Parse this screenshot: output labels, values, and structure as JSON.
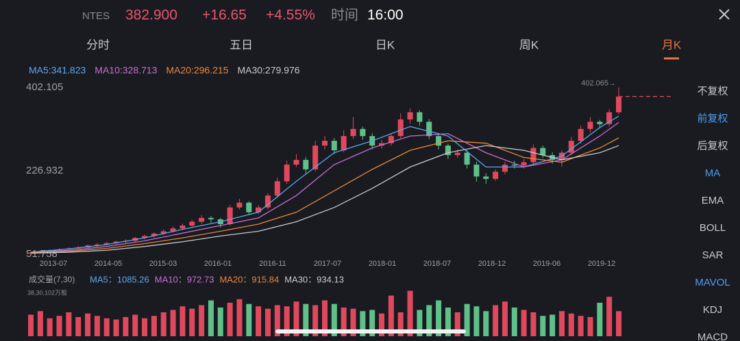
{
  "header": {
    "symbol": "NTES",
    "price": "382.900",
    "change": "+16.65",
    "change_pct": "+4.55%",
    "time_label": "时间",
    "time": "16:00"
  },
  "tabs": [
    "分时",
    "五日",
    "日K",
    "周K",
    "月K"
  ],
  "active_tab": 4,
  "side_menu": [
    "不复权",
    "前复权",
    "后复权",
    "MA",
    "EMA",
    "BOLL",
    "SAR",
    "MAVOL",
    "KDJ",
    "MACD"
  ],
  "side_menu_active": [
    1,
    3,
    7
  ],
  "chart_data": {
    "type": "candlestick",
    "ma_labels": [
      {
        "text": "MA5:341.823",
        "color": "#5aa7f0"
      },
      {
        "text": "MA10:328.713",
        "color": "#c86dd7"
      },
      {
        "text": "MA20:296.215",
        "color": "#e8873a"
      },
      {
        "text": "MA30:279.976",
        "color": "#c8c8cc"
      }
    ],
    "ylim": [
      51.758,
      402.105
    ],
    "yticks": [
      402.105,
      226.932,
      51.758
    ],
    "x_labels": [
      "2013-07",
      "2014-05",
      "2015-03",
      "2016-01",
      "2016-11",
      "2017-07",
      "2018-01",
      "2018-07",
      "2018-12",
      "2019-06",
      "2019-12"
    ],
    "up_color": "#e0495d",
    "down_color": "#5fc08a",
    "max_label": "402.065→",
    "ohlc": [
      [
        53,
        57,
        50,
        55
      ],
      [
        55,
        60,
        53,
        58
      ],
      [
        58,
        62,
        56,
        60
      ],
      [
        60,
        64,
        57,
        62
      ],
      [
        62,
        66,
        60,
        64
      ],
      [
        64,
        69,
        62,
        66
      ],
      [
        66,
        72,
        64,
        70
      ],
      [
        70,
        75,
        67,
        72
      ],
      [
        72,
        78,
        70,
        75
      ],
      [
        75,
        80,
        73,
        78
      ],
      [
        78,
        83,
        75,
        80
      ],
      [
        80,
        88,
        78,
        86
      ],
      [
        86,
        93,
        83,
        90
      ],
      [
        90,
        98,
        87,
        95
      ],
      [
        95,
        104,
        92,
        100
      ],
      [
        100,
        110,
        97,
        106
      ],
      [
        106,
        116,
        102,
        112
      ],
      [
        112,
        124,
        108,
        120
      ],
      [
        120,
        134,
        116,
        128
      ],
      [
        128,
        132,
        118,
        125
      ],
      [
        125,
        128,
        108,
        115
      ],
      [
        115,
        155,
        112,
        150
      ],
      [
        150,
        168,
        146,
        160
      ],
      [
        160,
        163,
        135,
        140
      ],
      [
        140,
        155,
        136,
        150
      ],
      [
        150,
        180,
        146,
        175
      ],
      [
        175,
        212,
        170,
        205
      ],
      [
        205,
        248,
        200,
        240
      ],
      [
        240,
        262,
        235,
        250
      ],
      [
        250,
        256,
        222,
        230
      ],
      [
        230,
        290,
        226,
        280
      ],
      [
        280,
        300,
        272,
        290
      ],
      [
        290,
        296,
        262,
        270
      ],
      [
        270,
        312,
        266,
        300
      ],
      [
        300,
        340,
        294,
        315
      ],
      [
        315,
        320,
        292,
        300
      ],
      [
        300,
        306,
        272,
        280
      ],
      [
        280,
        292,
        274,
        285
      ],
      [
        285,
        306,
        280,
        300
      ],
      [
        300,
        348,
        296,
        335
      ],
      [
        335,
        358,
        326,
        350
      ],
      [
        350,
        354,
        322,
        330
      ],
      [
        330,
        336,
        294,
        300
      ],
      [
        300,
        306,
        272,
        280
      ],
      [
        280,
        284,
        252,
        260
      ],
      [
        260,
        272,
        254,
        265
      ],
      [
        265,
        270,
        232,
        240
      ],
      [
        240,
        246,
        204,
        215
      ],
      [
        215,
        222,
        200,
        210
      ],
      [
        210,
        230,
        206,
        225
      ],
      [
        225,
        246,
        220,
        240
      ],
      [
        240,
        248,
        232,
        238
      ],
      [
        238,
        252,
        232,
        245
      ],
      [
        245,
        282,
        240,
        275
      ],
      [
        275,
        280,
        254,
        260
      ],
      [
        260,
        266,
        242,
        250
      ],
      [
        250,
        270,
        236,
        265
      ],
      [
        265,
        298,
        260,
        290
      ],
      [
        290,
        322,
        284,
        315
      ],
      [
        315,
        340,
        308,
        330
      ],
      [
        330,
        334,
        316,
        325
      ],
      [
        325,
        356,
        320,
        350
      ],
      [
        350,
        402.065,
        346,
        382.9
      ]
    ],
    "ma_series": [
      {
        "x": [
          0,
          4,
          8,
          12,
          16,
          20,
          24,
          28,
          32,
          36,
          40,
          44,
          48,
          52,
          56,
          60,
          62
        ],
        "values": [
          56,
          63,
          72,
          86,
          104,
          120,
          140,
          205,
          265,
          290,
          320,
          300,
          235,
          235,
          258,
          318,
          341.823
        ]
      },
      {
        "x": [
          0,
          4,
          8,
          12,
          16,
          20,
          24,
          28,
          32,
          36,
          40,
          44,
          48,
          52,
          56,
          60,
          62
        ],
        "values": [
          55,
          60,
          68,
          80,
          96,
          112,
          128,
          175,
          240,
          275,
          300,
          305,
          265,
          235,
          250,
          300,
          328.713
        ]
      },
      {
        "x": [
          0,
          4,
          8,
          12,
          16,
          20,
          24,
          28,
          32,
          36,
          40,
          44,
          48,
          52,
          56,
          60,
          62
        ],
        "values": [
          55,
          58,
          64,
          74,
          86,
          100,
          115,
          140,
          185,
          230,
          270,
          290,
          285,
          255,
          245,
          275,
          296.215
        ]
      },
      {
        "x": [
          0,
          4,
          8,
          12,
          16,
          20,
          24,
          28,
          32,
          36,
          40,
          44,
          48,
          52,
          56,
          60,
          62
        ],
        "values": [
          54,
          56,
          60,
          68,
          78,
          90,
          100,
          120,
          150,
          190,
          235,
          265,
          280,
          270,
          250,
          265,
          279.976
        ]
      }
    ],
    "volume": {
      "title": "成交量(7,30)",
      "ma_labels": [
        "MA5：1085.26",
        "MA10：972.73",
        "MA20：915.84",
        "MA30：934.13"
      ],
      "max_label": "38,30,102万股",
      "ylim": [
        0,
        3830.102
      ],
      "values": [
        1800,
        2100,
        1500,
        1700,
        2000,
        1600,
        1900,
        1700,
        1500,
        1400,
        1600,
        1800,
        1500,
        1700,
        2000,
        2200,
        2500,
        2300,
        2600,
        3000,
        2400,
        2800,
        3100,
        2700,
        2500,
        2300,
        2600,
        2500,
        2900,
        2700,
        2600,
        3000,
        2700,
        2400,
        2300,
        2100,
        2200,
        1900,
        3400,
        2000,
        3800,
        2200,
        2600,
        3000,
        2400,
        2000,
        2700,
        2500,
        2100,
        2600,
        2900,
        2400,
        2200,
        2000,
        1700,
        1800,
        2100,
        1900,
        1700,
        1600,
        2800,
        3300,
        2100
      ]
    }
  }
}
